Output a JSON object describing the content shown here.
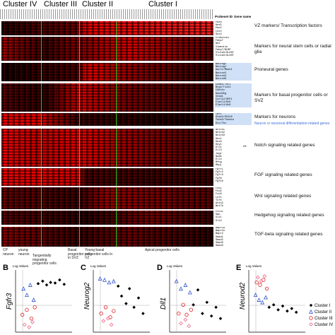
{
  "clusters": [
    "Cluster IV",
    "Cluster III",
    "Cluster II",
    "Cluster I"
  ],
  "gene_header": [
    "Probeset ID",
    "Gene name"
  ],
  "groups": [
    {
      "label": "VZ markers/ Transcription factors",
      "genes": [
        "Pax6",
        "Hes5",
        "Emx2",
        "Lhx2",
        "Sox2",
        "Dlx1"
      ],
      "highlight": false
    },
    {
      "label": "Markers for neural stem cells or radial glia",
      "genes": [
        "Prominin1",
        "Fabp7",
        "Nes",
        "Vimentin",
        "Fabp7/BLBP",
        "Slc1a3/GLAST",
        "Slc1a3/GLAST"
      ],
      "highlight": false
    },
    {
      "label": "Proneural genes",
      "genes": [
        "Neurog2",
        "Neurog1",
        "Ascl1/Mash1",
        "Neurod1",
        "Neurod4",
        "Neurod6"
      ],
      "highlight": true
    },
    {
      "label": "Markers for basal progenitor cells or SVZ",
      "genes": [
        "Eomes/Tbr2",
        "Btg2/Tis21",
        "Cdkn1c",
        "Gadd45g",
        "Insm1",
        "Cxcl12/SDF1",
        "Elavl4/HuD",
        "Elavl4/HuD"
      ],
      "highlight": true
    },
    {
      "label": "Markers for neurons",
      "genes": [
        "Tbr1",
        "Stmn2/SCG10",
        "Tubb3/Tuba1a",
        "Dcx/Tbx"
      ],
      "highlight": true
    },
    {
      "label": "Notch signaling related genes",
      "genes": [
        "Notch1",
        "Notch2",
        "Notch3",
        "Hes1",
        "Hes6",
        "Hey1",
        "Dll1",
        "Dll3",
        "Jag1",
        "Numb",
        "Dll4",
        "Mfng",
        "Rbpj",
        "Maml1/CBF1"
      ],
      "highlight": false
    },
    {
      "label": "FGF signaling related genes",
      "genes": [
        "Fgfr1",
        "Fgfr2",
        "Fgfr3",
        "Fgf8",
        "Fgf10"
      ],
      "highlight": false
    },
    {
      "label": "Wnt signaling related genes",
      "genes": [
        "Fzd1",
        "Fzd2",
        "Fzd3",
        "Lef1",
        "Tcf4",
        "Axin2",
        "Wnt7b"
      ],
      "highlight": false
    },
    {
      "label": "Hedgehog signaling related genes",
      "genes": [
        "Ptch1",
        "Smo",
        "Gli1",
        "Gli3"
      ],
      "highlight": false
    },
    {
      "label": "TGF-beta signaling related genes",
      "genes": [
        "Bmpr1a",
        "Bmpr1b",
        "Bmpr2",
        "Smad1",
        "Smad2",
        "Smad3",
        "Smad4",
        "Smad7"
      ],
      "highlight": false
    }
  ],
  "annotations": {
    "neuron_note": "Neuron or neuronal differentiation-related genes",
    "star1": "*",
    "star2": "**"
  },
  "cell_types": [
    "CP neuron",
    "young neuron",
    "Tangentially migrating progenitor cells",
    "Basal progenitor cells in SVZ",
    "Young basal progenitor cells in VZ",
    "Apical progenitor cells"
  ],
  "panels": [
    {
      "letter": "B",
      "axis_label": "Log Values",
      "gene": "Fgfr3",
      "series": [
        {
          "points": [
            [
              40,
              78
            ],
            [
              48,
              82
            ],
            [
              55,
              76
            ],
            [
              62,
              80
            ],
            [
              70,
              79
            ],
            [
              78,
              84
            ],
            [
              86,
              77
            ]
          ]
        },
        {
          "points": [
            [
              14,
              70
            ],
            [
              20,
              60
            ],
            [
              26,
              76
            ],
            [
              32,
              52
            ]
          ]
        },
        {
          "points": [
            [
              12,
              28
            ],
            [
              20,
              36
            ],
            [
              28,
              22
            ],
            [
              34,
              40
            ]
          ]
        },
        {
          "points": [
            [
              16,
              12
            ],
            [
              24,
              8
            ],
            [
              30,
              16
            ]
          ]
        }
      ]
    },
    {
      "letter": "C",
      "axis_label": "Log Values",
      "gene": "Neurog2",
      "series": [
        {
          "points": [
            [
              44,
              74
            ],
            [
              50,
              58
            ],
            [
              58,
              46
            ],
            [
              64,
              70
            ],
            [
              72,
              40
            ],
            [
              80,
              55
            ],
            [
              88,
              30
            ]
          ]
        },
        {
          "points": [
            [
              12,
              86
            ],
            [
              20,
              84
            ],
            [
              28,
              80
            ],
            [
              36,
              82
            ]
          ]
        },
        {
          "points": [
            [
              14,
              30
            ],
            [
              22,
              40
            ],
            [
              30,
              24
            ],
            [
              36,
              34
            ]
          ]
        },
        {
          "points": [
            [
              18,
              18
            ],
            [
              26,
              22
            ],
            [
              32,
              12
            ]
          ]
        }
      ]
    },
    {
      "letter": "D",
      "axis_label": "Log Values",
      "gene": "Dll1",
      "series": [
        {
          "points": [
            [
              42,
              44
            ],
            [
              50,
              68
            ],
            [
              58,
              30
            ],
            [
              66,
              48
            ],
            [
              74,
              26
            ],
            [
              82,
              40
            ],
            [
              90,
              22
            ]
          ]
        },
        {
          "points": [
            [
              12,
              82
            ],
            [
              20,
              70
            ],
            [
              28,
              76
            ],
            [
              36,
              64
            ]
          ]
        },
        {
          "points": [
            [
              16,
              30
            ],
            [
              24,
              44
            ],
            [
              30,
              28
            ],
            [
              38,
              36
            ]
          ]
        },
        {
          "points": [
            [
              20,
              14
            ],
            [
              28,
              20
            ],
            [
              34,
              10
            ]
          ]
        }
      ]
    },
    {
      "letter": "E",
      "axis_label": "Log Values",
      "gene": "Neurod2",
      "series": [
        {
          "points": [
            [
              36,
              40
            ],
            [
              44,
              44
            ],
            [
              52,
              36
            ],
            [
              60,
              42
            ],
            [
              68,
              34
            ],
            [
              76,
              38
            ],
            [
              84,
              32
            ]
          ]
        },
        {
          "points": [
            [
              12,
              60
            ],
            [
              18,
              52
            ],
            [
              24,
              48
            ],
            [
              30,
              56
            ]
          ]
        },
        {
          "points": [
            [
              14,
              80
            ],
            [
              20,
              76
            ],
            [
              26,
              84
            ],
            [
              32,
              70
            ]
          ]
        },
        {
          "points": [
            [
              16,
              88
            ],
            [
              22,
              82
            ],
            [
              28,
              90
            ]
          ]
        }
      ]
    }
  ],
  "legend": [
    "Cluster I",
    "Cluster II",
    "Cluster III",
    "Cluster IV"
  ]
}
